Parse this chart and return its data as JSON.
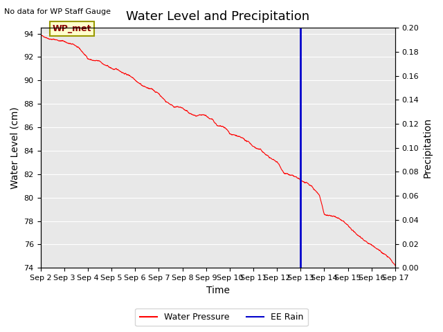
{
  "title": "Water Level and Precipitation",
  "top_left_text": "No data for WP Staff Gauge",
  "xlabel": "Time",
  "ylabel_left": "Water Level (cm)",
  "ylabel_right": "Precipitation",
  "annotation_label": "WP_met",
  "ylim_left": [
    74,
    94.5
  ],
  "ylim_right": [
    0,
    0.2
  ],
  "yticks_left": [
    74,
    76,
    78,
    80,
    82,
    84,
    86,
    88,
    90,
    92,
    94
  ],
  "yticks_right": [
    0.0,
    0.02,
    0.04,
    0.06,
    0.08,
    0.1,
    0.12,
    0.14,
    0.16,
    0.18,
    0.2
  ],
  "xtick_labels": [
    "Sep 2",
    "Sep 3",
    "Sep 4",
    "Sep 5",
    "Sep 6",
    "Sep 7",
    "Sep 8",
    "Sep 9",
    "Sep 10",
    "Sep 11",
    "Sep 12",
    "Sep 13",
    "Sep 14",
    "Sep 15",
    "Sep 16",
    "Sep 17"
  ],
  "vline_x_day": 11.0,
  "water_pressure_color": "#ff0000",
  "vline_color": "#0000cc",
  "background_color": "#e8e8e8",
  "annotation_bg_color": "#ffffcc",
  "annotation_border_color": "#999900",
  "legend_wp_label": "Water Pressure",
  "legend_rain_label": "EE Rain",
  "title_fontsize": 13,
  "label_fontsize": 10,
  "tick_fontsize": 8,
  "key_days": [
    0,
    0.3,
    1.0,
    1.5,
    2.0,
    2.5,
    3.0,
    3.5,
    4.0,
    4.3,
    4.6,
    5.0,
    5.3,
    5.6,
    6.0,
    6.3,
    6.6,
    7.0,
    7.3,
    7.5,
    7.8,
    8.0,
    8.3,
    8.5,
    8.8,
    9.0,
    9.3,
    9.6,
    9.8,
    10.0,
    10.3,
    10.6,
    10.8,
    11.0,
    11.2,
    11.5,
    11.8,
    12.0,
    12.3,
    12.6,
    12.8,
    13.0,
    13.3,
    13.6,
    14.0,
    14.3,
    14.6,
    14.8,
    15.0
  ],
  "key_vals": [
    93.8,
    93.75,
    93.6,
    93.2,
    92.1,
    91.8,
    91.2,
    90.9,
    90.5,
    90.1,
    89.8,
    89.4,
    88.8,
    88.5,
    88.3,
    87.8,
    87.5,
    87.3,
    86.9,
    86.5,
    86.2,
    85.7,
    85.5,
    85.2,
    84.8,
    84.5,
    84.2,
    83.7,
    83.4,
    83.2,
    82.4,
    82.1,
    81.9,
    81.5,
    81.3,
    80.8,
    80.2,
    78.7,
    78.5,
    78.2,
    77.9,
    77.5,
    76.8,
    76.5,
    76.0,
    75.6,
    75.2,
    74.8,
    74.2
  ]
}
